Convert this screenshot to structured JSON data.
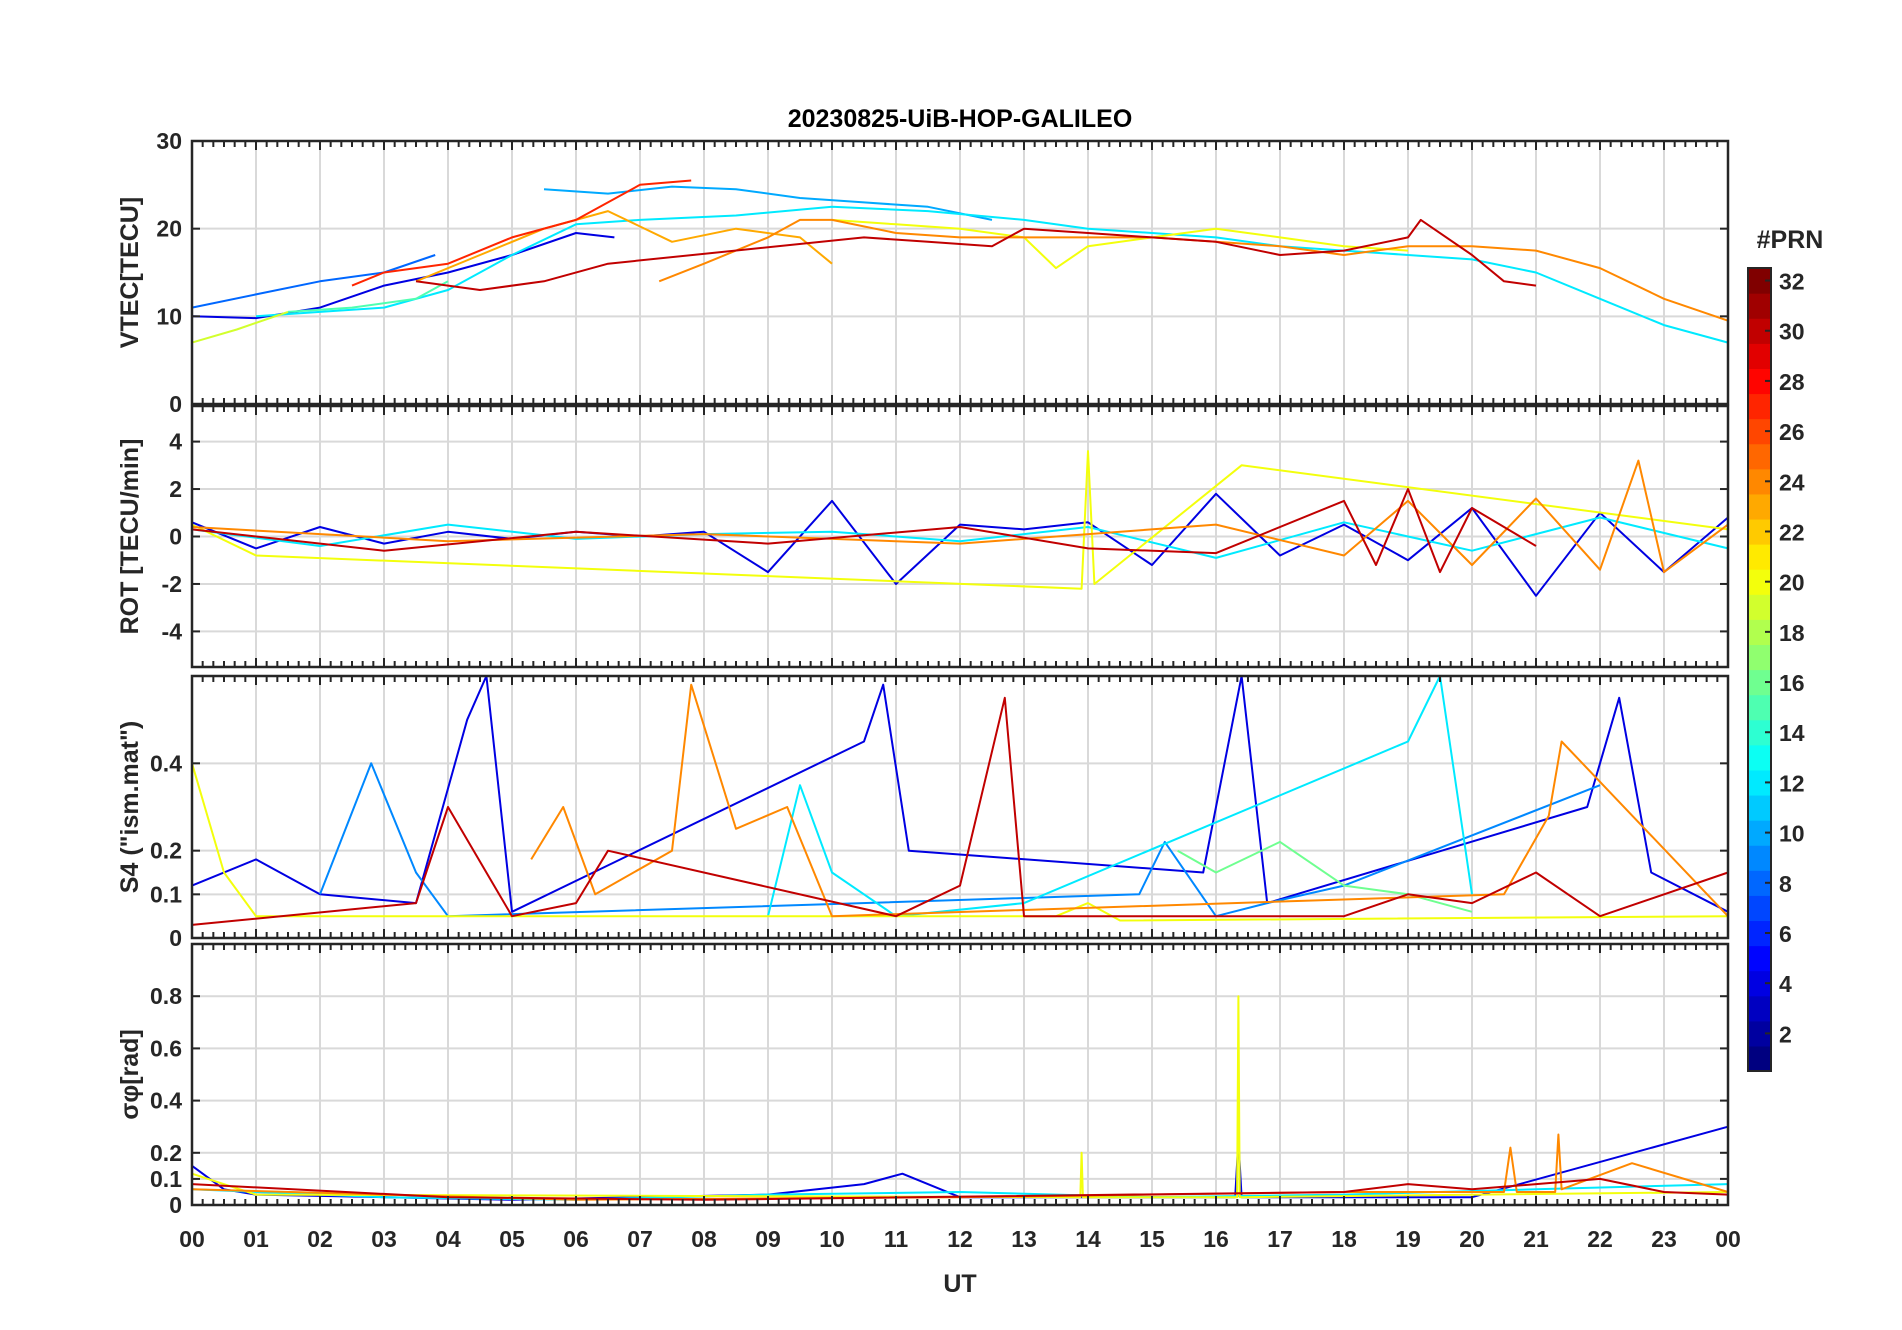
{
  "chart_data": {
    "type": "line",
    "title": "20230825-UiB-HOP-GALILEO",
    "xlabel": "UT",
    "xlim": [
      0,
      24
    ],
    "x_tick_labels": [
      "00",
      "01",
      "02",
      "03",
      "04",
      "05",
      "06",
      "07",
      "08",
      "09",
      "10",
      "11",
      "12",
      "13",
      "14",
      "15",
      "16",
      "17",
      "18",
      "19",
      "20",
      "21",
      "22",
      "23",
      "00"
    ],
    "grid": true,
    "colorbar": {
      "label": "#PRN",
      "range": [
        1,
        32
      ],
      "tick_labels": [
        "2",
        "4",
        "6",
        "8",
        "10",
        "12",
        "14",
        "16",
        "18",
        "20",
        "22",
        "24",
        "26",
        "28",
        "30",
        "32"
      ],
      "colormap": "jet",
      "placement": "right"
    },
    "panels": [
      {
        "key": "vtec",
        "ylabel": "VTEC[TECU]",
        "ylim": [
          0,
          30
        ],
        "y_ticks": [
          0,
          10,
          20,
          30
        ],
        "y_tick_labels": [
          "0",
          "10",
          "20",
          "30"
        ],
        "series": [
          {
            "prn": 4,
            "x": [
              0,
              1,
              2,
              3,
              4,
              5,
              6,
              6.6
            ],
            "y": [
              10,
              9.8,
              11,
              13.5,
              15,
              17,
              19.5,
              19
            ]
          },
          {
            "prn": 8,
            "x": [
              0,
              1,
              2,
              3,
              3.8
            ],
            "y": [
              11,
              12.5,
              14,
              15,
              17
            ]
          },
          {
            "prn": 10,
            "x": [
              5.5,
              6.5,
              7.5,
              8.5,
              9.5,
              10.5,
              11.5,
              12.5
            ],
            "y": [
              24.5,
              24,
              24.8,
              24.5,
              23.5,
              23,
              22.5,
              21
            ]
          },
          {
            "prn": 12,
            "x": [
              1,
              2,
              3,
              4,
              5,
              6,
              7,
              8.5,
              10,
              11.5,
              13,
              14,
              15,
              16,
              17,
              18,
              19,
              20,
              21,
              22,
              23,
              24
            ],
            "y": [
              10,
              10.5,
              11,
              13,
              17,
              20.5,
              21,
              21.5,
              22.5,
              22,
              21,
              20,
              19.5,
              19,
              18,
              17.5,
              17,
              16.5,
              15,
              12,
              9,
              7
            ]
          },
          {
            "prn": 15,
            "x": [
              1.5,
              2.5,
              3.5,
              4
            ],
            "y": [
              10.5,
              11,
              12,
              14
            ]
          },
          {
            "prn": 19,
            "x": [
              0,
              0.7,
              1.5
            ],
            "y": [
              7,
              8.5,
              10.5
            ]
          },
          {
            "prn": 20,
            "x": [
              10,
              11,
              12,
              13,
              13.5,
              14,
              15,
              16,
              17,
              18,
              19
            ],
            "y": [
              21,
              20.5,
              20,
              19,
              15.5,
              18,
              19,
              20,
              19,
              18,
              17.5
            ]
          },
          {
            "prn": 23,
            "x": [
              3.5,
              4.5,
              5.5,
              6.5,
              7.5,
              8.5,
              9.5,
              10
            ],
            "y": [
              14,
              17,
              20,
              22,
              18.5,
              20,
              19,
              16
            ]
          },
          {
            "prn": 24,
            "x": [
              7.3,
              8,
              9,
              9.5,
              10,
              11,
              12,
              13,
              14,
              15,
              16,
              17,
              18,
              19,
              20,
              21,
              22,
              23,
              24
            ],
            "y": [
              14,
              16,
              19,
              21,
              21,
              19.5,
              19,
              19,
              19,
              19,
              18.5,
              18,
              17,
              18,
              18,
              17.5,
              15.5,
              12,
              9.5
            ]
          },
          {
            "prn": 27,
            "x": [
              2.5,
              3,
              4,
              5,
              6,
              7,
              7.8
            ],
            "y": [
              13.5,
              15,
              16,
              19,
              21,
              25,
              25.5
            ]
          },
          {
            "prn": 30,
            "x": [
              3.5,
              4.5,
              5.5,
              6.5,
              10.5,
              11.5,
              12.5,
              13,
              14,
              15,
              16,
              17,
              18,
              19,
              19.2,
              20,
              20.5,
              21
            ],
            "y": [
              14,
              13,
              14,
              16,
              19,
              18.5,
              18,
              20,
              19.5,
              19,
              18.5,
              17,
              17.5,
              19,
              21,
              17,
              14,
              13.5
            ]
          }
        ]
      },
      {
        "key": "rot",
        "ylabel": "ROT [TECU/min]",
        "ylim": [
          -5.5,
          5.5
        ],
        "y_ticks": [
          -4,
          -2,
          0,
          2,
          4
        ],
        "y_tick_labels": [
          "-4",
          "-2",
          "0",
          "2",
          "4"
        ],
        "series": [
          {
            "prn": 4,
            "x": [
              0,
              1,
              2,
              3,
              4,
              5,
              6,
              7,
              8,
              9,
              10,
              11,
              12,
              13,
              14,
              15,
              16,
              17,
              18,
              19,
              20,
              21,
              22,
              23,
              24
            ],
            "y": [
              0.6,
              -0.5,
              0.4,
              -0.3,
              0.2,
              -0.1,
              0.2,
              0,
              0.2,
              -1.5,
              1.5,
              -2,
              0.5,
              0.3,
              0.6,
              -1.2,
              1.8,
              -0.8,
              0.5,
              -1,
              1.2,
              -2.5,
              1,
              -1.5,
              0.8
            ]
          },
          {
            "prn": 12,
            "x": [
              0,
              2,
              4,
              6,
              8,
              10,
              12,
              14,
              16,
              18,
              20,
              22,
              24
            ],
            "y": [
              0.3,
              -0.4,
              0.5,
              -0.1,
              0.1,
              0.2,
              -0.2,
              0.4,
              -0.9,
              0.6,
              -0.6,
              0.8,
              -0.5
            ]
          },
          {
            "prn": 20,
            "x": [
              0,
              1,
              13.9,
              14,
              14.1,
              16.4,
              24
            ],
            "y": [
              0.5,
              -0.8,
              -2.2,
              3.6,
              -2,
              3,
              0.3
            ]
          },
          {
            "prn": 24,
            "x": [
              0,
              4,
              8,
              12,
              16,
              18,
              19,
              20,
              21,
              22,
              22.6,
              23,
              24
            ],
            "y": [
              0.4,
              -0.2,
              0.1,
              -0.3,
              0.5,
              -0.8,
              1.5,
              -1.2,
              1.6,
              -1.4,
              3.2,
              -1.5,
              0.5
            ]
          },
          {
            "prn": 30,
            "x": [
              0,
              3,
              6,
              9,
              12,
              14,
              16,
              18,
              18.5,
              19,
              19.5,
              20,
              21
            ],
            "y": [
              0.3,
              -0.6,
              0.2,
              -0.3,
              0.4,
              -0.5,
              -0.7,
              1.5,
              -1.2,
              2,
              -1.5,
              1.2,
              -0.4
            ]
          }
        ]
      },
      {
        "key": "s4",
        "ylabel": "S4 (\"ism.mat\")",
        "ylim": [
          0,
          0.6
        ],
        "y_ticks": [
          0,
          0.1,
          0.2,
          0.4
        ],
        "y_tick_labels": [
          "0",
          "0.1",
          "0.2",
          "0.4"
        ],
        "series": [
          {
            "prn": 4,
            "x": [
              0,
              1,
              2,
              3.5,
              4.3,
              4.6,
              5,
              10.5,
              10.8,
              11.2,
              15.8,
              16.4,
              16.8,
              21.8,
              22.3,
              22.8,
              24
            ],
            "y": [
              0.12,
              0.18,
              0.1,
              0.08,
              0.5,
              0.6,
              0.06,
              0.45,
              0.58,
              0.2,
              0.15,
              0.6,
              0.08,
              0.3,
              0.55,
              0.15,
              0.06
            ]
          },
          {
            "prn": 9,
            "x": [
              2,
              2.8,
              3.5,
              4,
              14.8,
              15.2,
              16,
              16.8,
              18,
              22
            ],
            "y": [
              0.1,
              0.4,
              0.15,
              0.05,
              0.1,
              0.22,
              0.05,
              0.08,
              0.12,
              0.35
            ]
          },
          {
            "prn": 12,
            "x": [
              9,
              9.5,
              10,
              11,
              13,
              19,
              19.5,
              20
            ],
            "y": [
              0.05,
              0.35,
              0.15,
              0.05,
              0.08,
              0.45,
              0.6,
              0.1
            ]
          },
          {
            "prn": 16,
            "x": [
              15.4,
              16,
              17,
              18,
              19,
              20
            ],
            "y": [
              0.2,
              0.15,
              0.22,
              0.12,
              0.1,
              0.06
            ]
          },
          {
            "prn": 20,
            "x": [
              0,
              0.5,
              1,
              13.5,
              14,
              14.5,
              24
            ],
            "y": [
              0.4,
              0.15,
              0.05,
              0.05,
              0.08,
              0.04,
              0.05
            ]
          },
          {
            "prn": 24,
            "x": [
              5.3,
              5.8,
              6.3,
              7.5,
              7.8,
              8.5,
              9.3,
              10,
              20.5,
              21.2,
              21.4,
              24
            ],
            "y": [
              0.18,
              0.3,
              0.1,
              0.2,
              0.58,
              0.25,
              0.3,
              0.05,
              0.1,
              0.28,
              0.45,
              0.05
            ]
          },
          {
            "prn": 30,
            "x": [
              0,
              3.5,
              4,
              5,
              6,
              6.5,
              11,
              12,
              12.7,
              13,
              18,
              19,
              20,
              21,
              22,
              24
            ],
            "y": [
              0.03,
              0.08,
              0.3,
              0.05,
              0.08,
              0.2,
              0.05,
              0.12,
              0.55,
              0.05,
              0.05,
              0.1,
              0.08,
              0.15,
              0.05,
              0.15
            ]
          }
        ]
      },
      {
        "key": "sigma_phi",
        "ylabel": "σφ[rad]",
        "ylim": [
          0,
          1
        ],
        "y_ticks": [
          0,
          0.1,
          0.2,
          0.4,
          0.6,
          0.8
        ],
        "y_tick_labels": [
          "0",
          "0.1",
          "0.2",
          "0.4",
          "0.6",
          "0.8"
        ],
        "series": [
          {
            "prn": 4,
            "x": [
              0,
              0.5,
              1,
              5,
              9,
              10.5,
              11.1,
              12,
              16.3,
              16.35,
              16.4,
              20,
              24
            ],
            "y": [
              0.15,
              0.06,
              0.04,
              0.02,
              0.04,
              0.08,
              0.12,
              0.03,
              0.03,
              0.25,
              0.03,
              0.03,
              0.3
            ]
          },
          {
            "prn": 12,
            "x": [
              0,
              3,
              6,
              9,
              12,
              15,
              18,
              21,
              24
            ],
            "y": [
              0.06,
              0.03,
              0.02,
              0.04,
              0.05,
              0.03,
              0.04,
              0.06,
              0.08
            ]
          },
          {
            "prn": 20,
            "x": [
              0,
              1,
              13.88,
              13.9,
              13.92,
              16.33,
              16.35,
              16.37,
              24
            ],
            "y": [
              0.12,
              0.04,
              0.03,
              0.2,
              0.03,
              0.03,
              0.8,
              0.03,
              0.05
            ]
          },
          {
            "prn": 24,
            "x": [
              0,
              6,
              12,
              18,
              20.5,
              20.6,
              20.7,
              21.3,
              21.35,
              21.4,
              22.5,
              24
            ],
            "y": [
              0.06,
              0.02,
              0.03,
              0.05,
              0.05,
              0.22,
              0.05,
              0.05,
              0.27,
              0.06,
              0.16,
              0.05
            ]
          },
          {
            "prn": 30,
            "x": [
              0,
              4,
              8,
              18,
              19,
              20,
              22,
              23,
              24
            ],
            "y": [
              0.08,
              0.03,
              0.02,
              0.05,
              0.08,
              0.06,
              0.1,
              0.05,
              0.04
            ]
          }
        ]
      }
    ]
  }
}
